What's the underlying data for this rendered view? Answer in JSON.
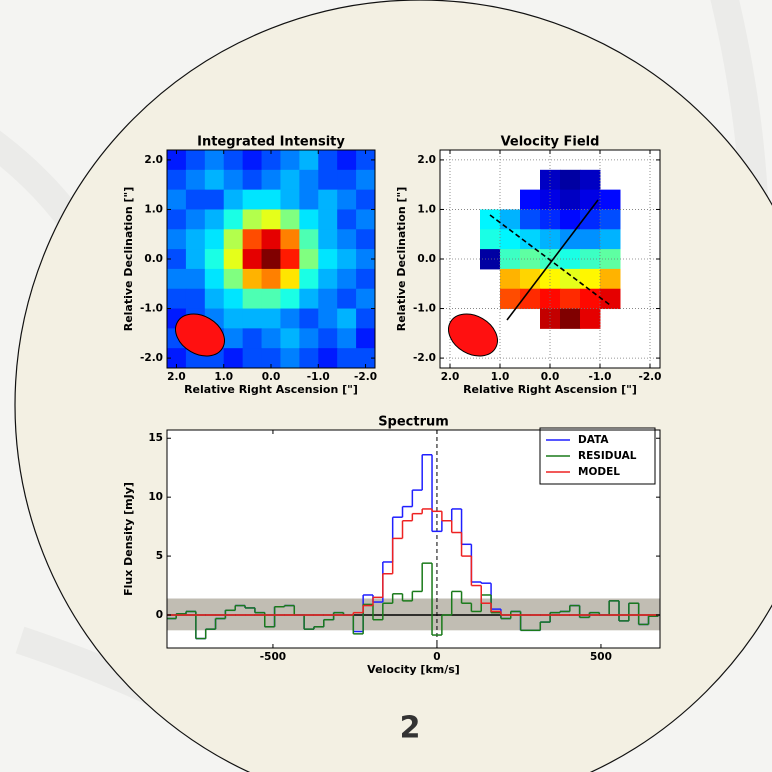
{
  "page_label": "2",
  "chart_data": [
    {
      "type": "heatmap",
      "title": "Integrated Intensity",
      "x_label": "Relative Right Ascension [\"]",
      "y_label": "Relative Declination [\"]",
      "xlim": [
        2.2,
        -2.2
      ],
      "ylim": [
        -2.2,
        2.2
      ],
      "xticks": [
        {
          "value": 2,
          "label": "2.0"
        },
        {
          "value": 1,
          "label": "1.0"
        },
        {
          "value": 0,
          "label": "0.0"
        },
        {
          "value": -1,
          "label": "-1.0"
        },
        {
          "value": -2,
          "label": "-2.0"
        }
      ],
      "yticks": [
        {
          "value": 2,
          "label": "2.0"
        },
        {
          "value": 1,
          "label": "1.0"
        },
        {
          "value": 0,
          "label": "0.0"
        },
        {
          "value": -1,
          "label": "-1.0"
        },
        {
          "value": -2,
          "label": "-2.0"
        }
      ],
      "clim": [
        0,
        1
      ],
      "colormap": "jet",
      "grid": false,
      "z": [
        [
          0.15,
          0.2,
          0.25,
          0.2,
          0.15,
          0.2,
          0.25,
          0.3,
          0.2,
          0.15,
          0.2
        ],
        [
          0.2,
          0.25,
          0.3,
          0.25,
          0.2,
          0.25,
          0.3,
          0.25,
          0.2,
          0.2,
          0.25
        ],
        [
          0.25,
          0.2,
          0.2,
          0.3,
          0.35,
          0.35,
          0.3,
          0.25,
          0.3,
          0.25,
          0.2
        ],
        [
          0.2,
          0.25,
          0.3,
          0.4,
          0.55,
          0.6,
          0.5,
          0.35,
          0.3,
          0.2,
          0.25
        ],
        [
          0.25,
          0.3,
          0.35,
          0.55,
          0.8,
          0.9,
          0.75,
          0.45,
          0.3,
          0.25,
          0.2
        ],
        [
          0.2,
          0.3,
          0.4,
          0.6,
          0.9,
          1.0,
          0.85,
          0.5,
          0.35,
          0.3,
          0.25
        ],
        [
          0.25,
          0.25,
          0.35,
          0.5,
          0.7,
          0.75,
          0.65,
          0.4,
          0.3,
          0.25,
          0.2
        ],
        [
          0.2,
          0.2,
          0.3,
          0.35,
          0.45,
          0.45,
          0.4,
          0.3,
          0.25,
          0.2,
          0.25
        ],
        [
          0.15,
          0.2,
          0.25,
          0.3,
          0.3,
          0.3,
          0.25,
          0.2,
          0.25,
          0.3,
          0.2
        ],
        [
          0.2,
          0.15,
          0.2,
          0.25,
          0.2,
          0.25,
          0.3,
          0.25,
          0.2,
          0.25,
          0.15
        ],
        [
          0.15,
          0.2,
          0.2,
          0.15,
          0.2,
          0.2,
          0.25,
          0.2,
          0.15,
          0.2,
          0.2
        ]
      ]
    },
    {
      "type": "heatmap",
      "title": "Velocity Field",
      "x_label": "Relative Right Ascension [\"]",
      "y_label": "Relative Declination [\"]",
      "xlim": [
        2.2,
        -2.2
      ],
      "ylim": [
        -2.2,
        2.2
      ],
      "xticks": [
        {
          "value": 2,
          "label": "2.0"
        },
        {
          "value": 1,
          "label": "1.0"
        },
        {
          "value": 0,
          "label": "0.0"
        },
        {
          "value": -1,
          "label": "-1.0"
        },
        {
          "value": -2,
          "label": "-2.0"
        }
      ],
      "yticks": [
        {
          "value": 2,
          "label": "2.0"
        },
        {
          "value": 1,
          "label": "1.0"
        },
        {
          "value": 0,
          "label": "0.0"
        },
        {
          "value": -1,
          "label": "-1.0"
        },
        {
          "value": -2,
          "label": "-2.0"
        }
      ],
      "clim": [
        -150,
        150
      ],
      "colormap": "jet",
      "grid": true,
      "z": [
        [
          null,
          null,
          null,
          null,
          null,
          null,
          null,
          null,
          null,
          null,
          null
        ],
        [
          null,
          null,
          null,
          null,
          null,
          -130,
          -140,
          -130,
          null,
          null,
          null
        ],
        [
          null,
          null,
          null,
          null,
          -110,
          -120,
          -130,
          -120,
          -110,
          null,
          null
        ],
        [
          null,
          null,
          -40,
          -60,
          -90,
          -100,
          -110,
          -100,
          -90,
          null,
          null
        ],
        [
          null,
          null,
          -30,
          -40,
          -50,
          -60,
          -70,
          -70,
          -60,
          null,
          null
        ],
        [
          null,
          null,
          -140,
          -20,
          -10,
          -20,
          -30,
          -20,
          -10,
          null,
          null
        ],
        [
          null,
          null,
          null,
          60,
          50,
          40,
          30,
          40,
          60,
          null,
          null
        ],
        [
          null,
          null,
          null,
          90,
          100,
          110,
          100,
          110,
          120,
          null,
          null
        ],
        [
          null,
          null,
          null,
          null,
          null,
          130,
          150,
          120,
          null,
          null,
          null
        ],
        [
          null,
          null,
          null,
          null,
          null,
          null,
          null,
          null,
          null,
          null,
          null
        ],
        [
          null,
          null,
          null,
          null,
          null,
          null,
          null,
          null,
          null,
          null,
          null
        ]
      ]
    },
    {
      "type": "step",
      "title": "Spectrum",
      "x_label": "Velocity [km/s]",
      "y_label": "Flux Density [mJy]",
      "xlim": [
        -823,
        680
      ],
      "ylim": [
        -2.8,
        15.7
      ],
      "xticks": [
        -500,
        0,
        500
      ],
      "yticks": [
        0,
        5,
        10,
        15
      ],
      "band": [
        -1.3,
        1.4
      ],
      "hline": 0,
      "vline": 0,
      "legend": "upper right",
      "x": [
        -810,
        -780,
        -750,
        -720,
        -690,
        -660,
        -630,
        -600,
        -570,
        -540,
        -510,
        -480,
        -450,
        -420,
        -390,
        -360,
        -330,
        -300,
        -270,
        -240,
        -210,
        -180,
        -150,
        -120,
        -90,
        -60,
        -30,
        0,
        30,
        60,
        90,
        120,
        150,
        180,
        210,
        240,
        270,
        300,
        330,
        360,
        390,
        420,
        450,
        480,
        510,
        540,
        570,
        600,
        630,
        660
      ],
      "series": [
        {
          "name": "DATA",
          "color": "#1f1fff",
          "values": [
            -0.3,
            0.1,
            0.3,
            -2.0,
            -1.2,
            -0.3,
            0.4,
            0.8,
            0.6,
            0.2,
            -1.0,
            0.7,
            0.8,
            0.0,
            -1.2,
            -1.0,
            -0.4,
            0.2,
            0.0,
            -1.4,
            1.7,
            1.1,
            4.5,
            8.3,
            9.2,
            10.6,
            13.6,
            7.1,
            8.0,
            9.0,
            6.0,
            2.8,
            2.7,
            0.5,
            -0.3,
            0.3,
            -1.3,
            -1.3,
            -0.6,
            0.2,
            0.3,
            0.8,
            -0.2,
            0.2,
            0.0,
            1.2,
            -0.5,
            1.0,
            -0.8,
            -0.1
          ]
        },
        {
          "name": "RESIDUAL",
          "color": "#1a7a1a",
          "values": [
            -0.3,
            0.1,
            0.3,
            -2.0,
            -1.2,
            -0.3,
            0.4,
            0.8,
            0.6,
            0.2,
            -1.0,
            0.7,
            0.8,
            0.0,
            -1.2,
            -1.0,
            -0.4,
            0.2,
            0.0,
            -1.6,
            0.9,
            -0.4,
            1.0,
            1.8,
            1.2,
            2.0,
            4.4,
            -1.7,
            0.0,
            2.0,
            1.0,
            0.3,
            1.7,
            0.2,
            -0.3,
            0.3,
            -1.3,
            -1.3,
            -0.6,
            0.2,
            0.3,
            0.8,
            -0.2,
            0.2,
            0.0,
            1.2,
            -0.5,
            1.0,
            -0.8,
            -0.1
          ]
        },
        {
          "name": "MODEL",
          "color": "#ee2222",
          "values": [
            0,
            0,
            0,
            0,
            0,
            0,
            0,
            0,
            0,
            0,
            0,
            0,
            0,
            0,
            0,
            0,
            0,
            0,
            0,
            0.2,
            0.8,
            1.5,
            3.5,
            6.5,
            8.0,
            8.6,
            9.0,
            8.8,
            8.0,
            7.0,
            5.0,
            2.5,
            1.0,
            0.3,
            0,
            0,
            0,
            0,
            0,
            0,
            0,
            0,
            0,
            0,
            0,
            0,
            0,
            0,
            0,
            0
          ]
        }
      ]
    }
  ]
}
